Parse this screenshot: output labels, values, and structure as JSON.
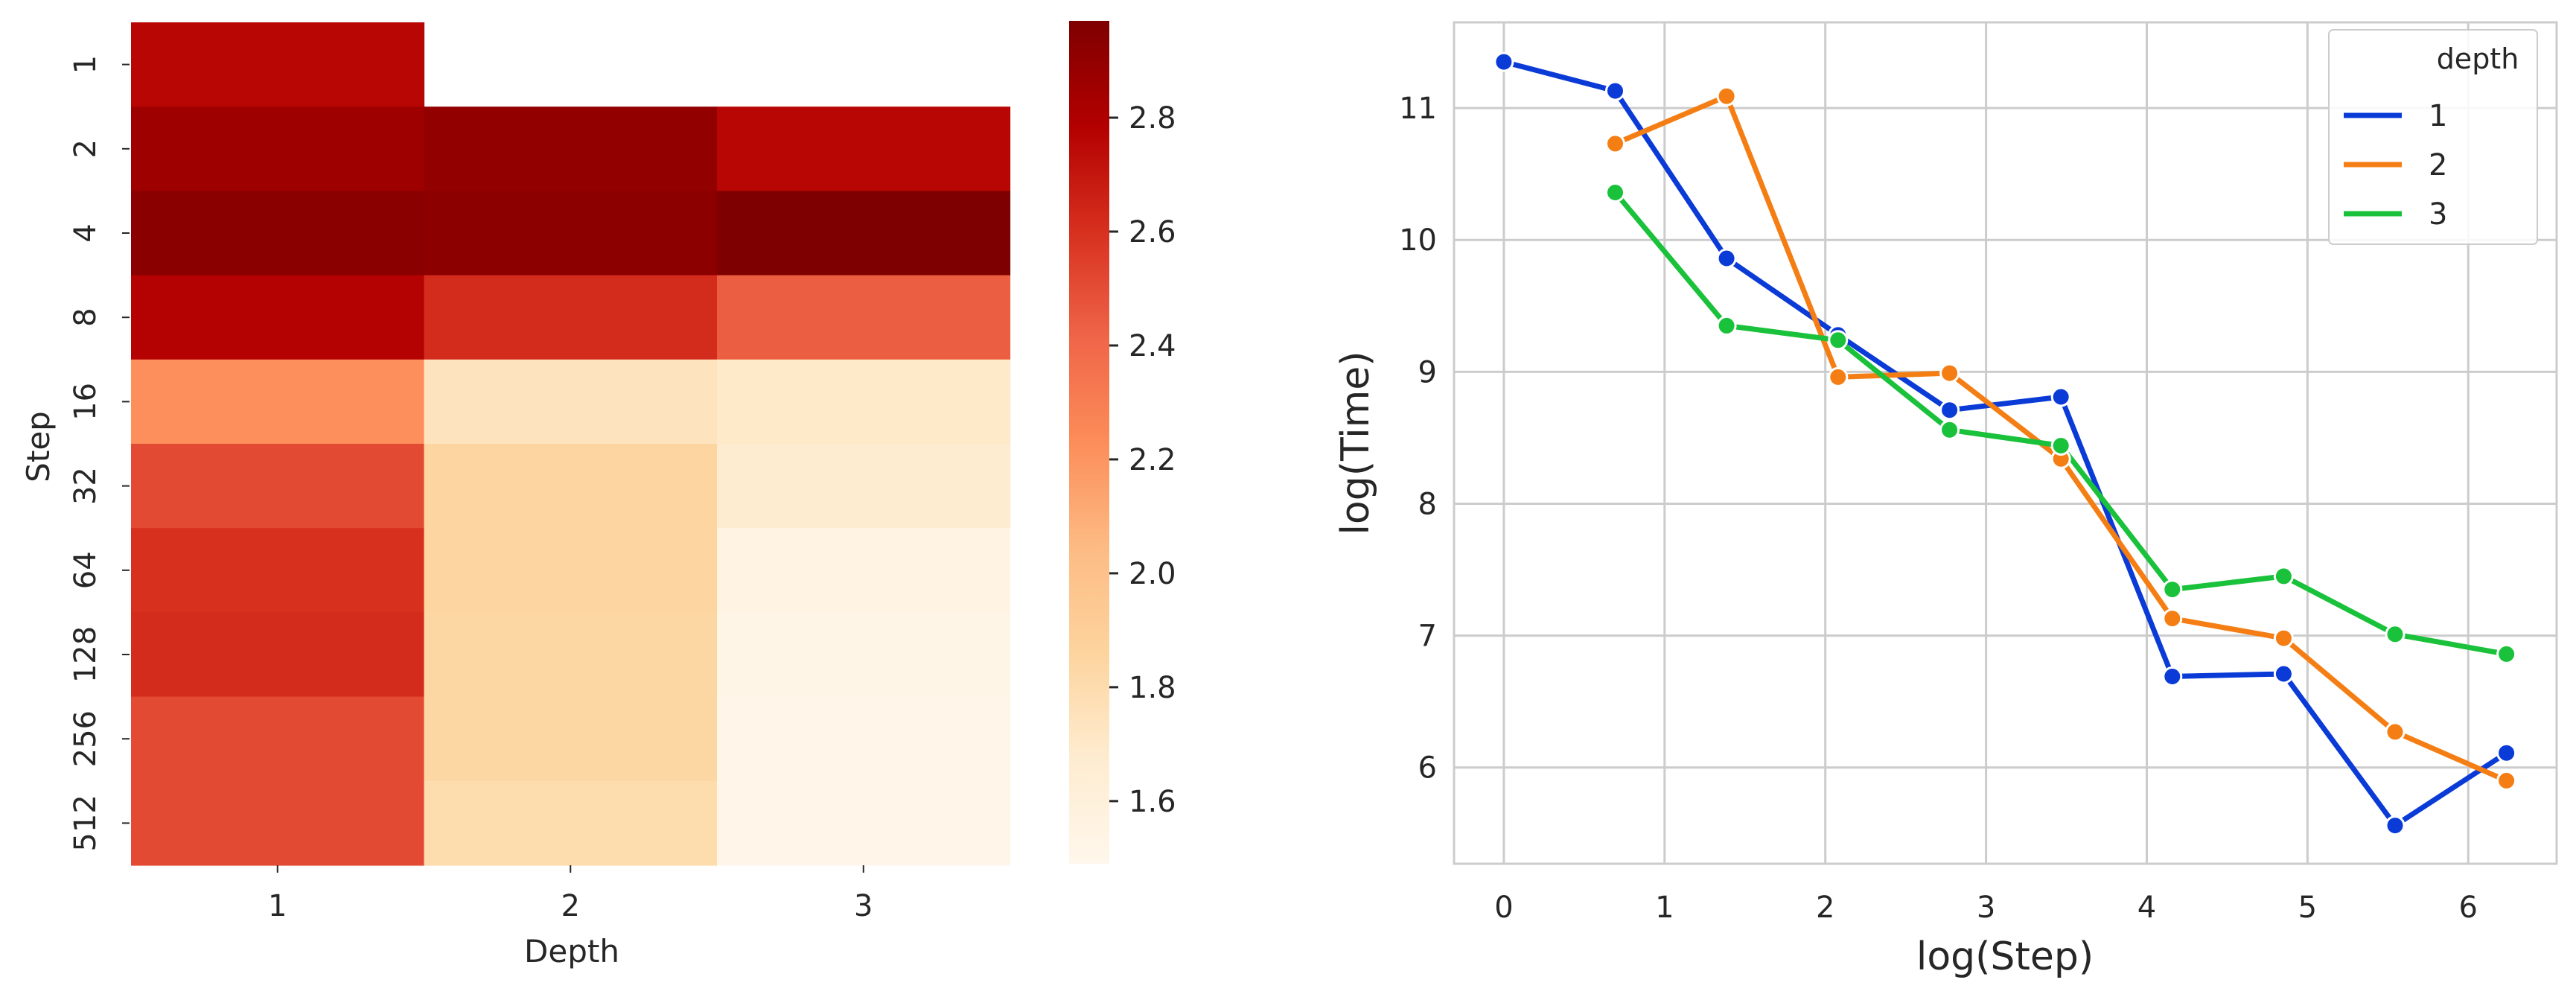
{
  "chart_data": [
    {
      "type": "heatmap",
      "xlabel": "Depth",
      "ylabel": "Step",
      "x_categories": [
        "1",
        "2",
        "3"
      ],
      "y_categories": [
        "1",
        "2",
        "4",
        "8",
        "16",
        "32",
        "64",
        "128",
        "256",
        "512"
      ],
      "values": [
        [
          2.76,
          null,
          null
        ],
        [
          2.86,
          2.9,
          2.76
        ],
        [
          2.93,
          2.92,
          2.97
        ],
        [
          2.78,
          2.62,
          2.44
        ],
        [
          2.22,
          1.74,
          1.7
        ],
        [
          2.51,
          1.85,
          1.67
        ],
        [
          2.6,
          1.85,
          1.54
        ],
        [
          2.62,
          1.84,
          1.52
        ],
        [
          2.51,
          1.84,
          1.51
        ],
        [
          2.51,
          1.8,
          1.51
        ]
      ],
      "colorbar": {
        "range": [
          1.49,
          2.97
        ],
        "ticks": [
          "1.6",
          "1.8",
          "2.0",
          "2.2",
          "2.4",
          "2.6",
          "2.8"
        ],
        "colormap": "OrRd"
      }
    },
    {
      "type": "line",
      "xlabel": "log(Step)",
      "ylabel": "log(Time)",
      "xlim": [
        -0.31,
        6.55
      ],
      "ylim": [
        5.27,
        11.65
      ],
      "xticks": [
        "0",
        "1",
        "2",
        "3",
        "4",
        "5",
        "6"
      ],
      "yticks": [
        "6",
        "7",
        "8",
        "9",
        "10",
        "11"
      ],
      "grid": true,
      "legend": {
        "title": "depth",
        "position": "top-right"
      },
      "series": [
        {
          "name": "1",
          "color": "#0a3bd6",
          "points": [
            [
              0,
              11.35
            ],
            [
              0.693,
              11.13
            ],
            [
              1.386,
              9.86
            ],
            [
              2.079,
              9.28
            ],
            [
              2.773,
              8.71
            ],
            [
              3.466,
              8.81
            ],
            [
              4.159,
              6.69
            ],
            [
              4.852,
              6.71
            ],
            [
              5.545,
              5.56
            ],
            [
              6.238,
              6.11
            ]
          ]
        },
        {
          "name": "2",
          "color": "#f57e14",
          "points": [
            [
              0.693,
              10.73
            ],
            [
              1.386,
              11.09
            ],
            [
              2.079,
              8.96
            ],
            [
              2.773,
              8.99
            ],
            [
              3.466,
              8.34
            ],
            [
              4.159,
              7.13
            ],
            [
              4.852,
              6.98
            ],
            [
              5.545,
              6.27
            ],
            [
              6.238,
              5.9
            ]
          ]
        },
        {
          "name": "3",
          "color": "#1ac13a",
          "points": [
            [
              0.693,
              10.36
            ],
            [
              1.386,
              9.35
            ],
            [
              2.079,
              9.24
            ],
            [
              2.773,
              8.56
            ],
            [
              3.466,
              8.44
            ],
            [
              4.159,
              7.35
            ],
            [
              4.852,
              7.45
            ],
            [
              5.545,
              7.01
            ],
            [
              6.238,
              6.86
            ]
          ]
        }
      ]
    }
  ]
}
